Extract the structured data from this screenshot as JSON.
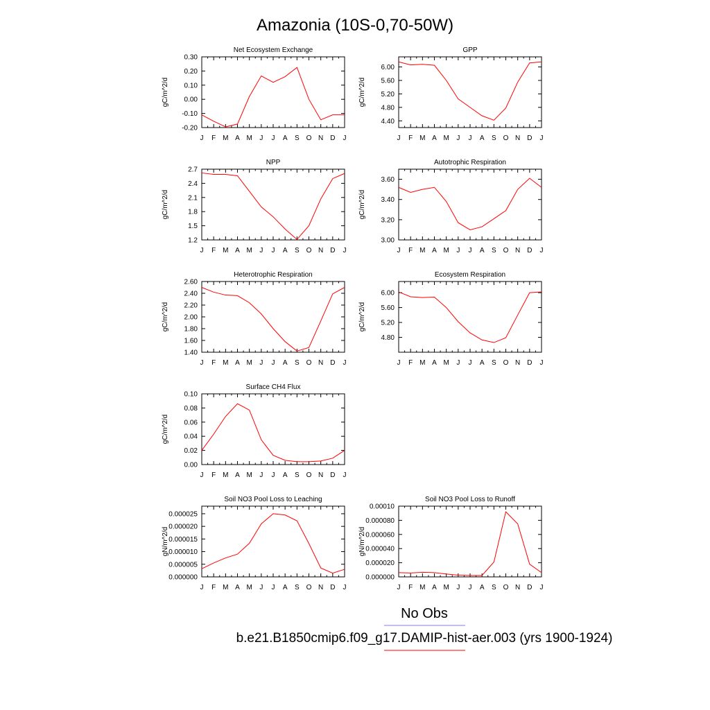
{
  "figure": {
    "title": "Amazonia (10S-0,70-50W)",
    "months": [
      "J",
      "F",
      "M",
      "A",
      "M",
      "J",
      "J",
      "A",
      "S",
      "O",
      "N",
      "D",
      "J"
    ]
  },
  "legend": {
    "obs_label": "No Obs",
    "model_label": "b.e21.B1850cmip6.f09_g17.DAMIP-hist-aer.003 (yrs 1900-1924)",
    "obs_color": "#7b7bff",
    "model_color": "#ff0000"
  },
  "chart_data": [
    {
      "type": "line",
      "title": "Net Ecosystem Exchange",
      "ylabel": "gC/m^2/d",
      "ylim": [
        -0.2,
        0.3
      ],
      "yticks": [
        "-0.20",
        "-0.10",
        "0.00",
        "0.10",
        "0.20",
        "0.30"
      ],
      "x": [
        "J",
        "F",
        "M",
        "A",
        "M",
        "J",
        "J",
        "A",
        "S",
        "O",
        "N",
        "D",
        "J"
      ],
      "series": [
        {
          "color": "#ff0000",
          "values": [
            -0.11,
            -0.155,
            -0.195,
            -0.175,
            0.02,
            0.165,
            0.12,
            0.16,
            0.225,
            0.0,
            -0.145,
            -0.11,
            -0.11
          ]
        }
      ]
    },
    {
      "type": "line",
      "title": "GPP",
      "ylabel": "gC/m^2/d",
      "ylim": [
        4.2,
        6.3
      ],
      "yticks": [
        "4.40",
        "4.80",
        "5.20",
        "5.60",
        "6.00"
      ],
      "x": [
        "J",
        "F",
        "M",
        "A",
        "M",
        "J",
        "J",
        "A",
        "S",
        "O",
        "N",
        "D",
        "J"
      ],
      "series": [
        {
          "color": "#ff0000",
          "values": [
            6.15,
            6.06,
            6.08,
            6.05,
            5.6,
            5.05,
            4.8,
            4.55,
            4.42,
            4.78,
            5.55,
            6.12,
            6.15
          ]
        }
      ]
    },
    {
      "type": "line",
      "title": "NPP",
      "ylabel": "gC/m^2/d",
      "ylim": [
        1.2,
        2.7
      ],
      "yticks": [
        "1.2",
        "1.5",
        "1.8",
        "2.1",
        "2.4",
        "2.7"
      ],
      "x": [
        "J",
        "F",
        "M",
        "A",
        "M",
        "J",
        "J",
        "A",
        "S",
        "O",
        "N",
        "D",
        "J"
      ],
      "series": [
        {
          "color": "#ff0000",
          "values": [
            2.62,
            2.59,
            2.59,
            2.56,
            2.23,
            1.9,
            1.69,
            1.43,
            1.21,
            1.5,
            2.07,
            2.5,
            2.61
          ]
        }
      ]
    },
    {
      "type": "line",
      "title": "Autotrophic Respiration",
      "ylabel": "gC/m^2/d",
      "ylim": [
        3.0,
        3.7
      ],
      "yticks": [
        "3.00",
        "3.20",
        "3.40",
        "3.60"
      ],
      "x": [
        "J",
        "F",
        "M",
        "A",
        "M",
        "J",
        "J",
        "A",
        "S",
        "O",
        "N",
        "D",
        "J"
      ],
      "series": [
        {
          "color": "#ff0000",
          "values": [
            3.52,
            3.47,
            3.5,
            3.52,
            3.38,
            3.17,
            3.1,
            3.13,
            3.21,
            3.29,
            3.5,
            3.61,
            3.52
          ]
        }
      ]
    },
    {
      "type": "line",
      "title": "Heterotrophic Respiration",
      "ylabel": "gC/m^2/d",
      "ylim": [
        1.4,
        2.6
      ],
      "yticks": [
        "1.40",
        "1.60",
        "1.80",
        "2.00",
        "2.20",
        "2.40",
        "2.60"
      ],
      "x": [
        "J",
        "F",
        "M",
        "A",
        "M",
        "J",
        "J",
        "A",
        "S",
        "O",
        "N",
        "D",
        "J"
      ],
      "series": [
        {
          "color": "#ff0000",
          "values": [
            2.5,
            2.42,
            2.37,
            2.36,
            2.24,
            2.05,
            1.8,
            1.58,
            1.42,
            1.48,
            1.93,
            2.39,
            2.5
          ]
        }
      ]
    },
    {
      "type": "line",
      "title": "Ecosystem Respiration",
      "ylabel": "gC/m^2/d",
      "ylim": [
        4.4,
        6.3
      ],
      "yticks": [
        "4.80",
        "5.20",
        "5.60",
        "6.00"
      ],
      "x": [
        "J",
        "F",
        "M",
        "A",
        "M",
        "J",
        "J",
        "A",
        "S",
        "O",
        "N",
        "D",
        "J"
      ],
      "series": [
        {
          "color": "#ff0000",
          "values": [
            6.02,
            5.89,
            5.87,
            5.88,
            5.6,
            5.22,
            4.92,
            4.73,
            4.66,
            4.79,
            5.4,
            6.0,
            6.02
          ]
        }
      ]
    },
    {
      "type": "line",
      "title": "Surface CH4 Flux",
      "ylabel": "gC/m^2/d",
      "ylim": [
        0.0,
        0.1
      ],
      "yticks": [
        "0.00",
        "0.02",
        "0.04",
        "0.06",
        "0.08",
        "0.10"
      ],
      "x": [
        "J",
        "F",
        "M",
        "A",
        "M",
        "J",
        "J",
        "A",
        "S",
        "O",
        "N",
        "D",
        "J"
      ],
      "series": [
        {
          "color": "#ff0000",
          "values": [
            0.02,
            0.043,
            0.068,
            0.086,
            0.077,
            0.035,
            0.013,
            0.006,
            0.004,
            0.004,
            0.005,
            0.009,
            0.02
          ]
        }
      ]
    },
    {
      "type": "line",
      "title": "Soil NO3 Pool Loss to Leaching",
      "ylabel": "gN/m^2/d",
      "ylim": [
        0.0,
        2.8e-05
      ],
      "yticks": [
        "0.000000",
        "0.000005",
        "0.000010",
        "0.000015",
        "0.000020",
        "0.000025"
      ],
      "x": [
        "J",
        "F",
        "M",
        "A",
        "M",
        "J",
        "J",
        "A",
        "S",
        "O",
        "N",
        "D",
        "J"
      ],
      "series": [
        {
          "color": "#ff0000",
          "values": [
            3.2e-06,
            5.5e-06,
            7.5e-06,
            9e-06,
            1.33e-05,
            2.1e-05,
            2.5e-05,
            2.45e-05,
            2.22e-05,
            1.32e-05,
            3.5e-06,
            1.5e-06,
            3e-06
          ]
        }
      ]
    },
    {
      "type": "line",
      "title": "Soil NO3 Pool Loss to Runoff",
      "ylabel": "gN/m^2/d",
      "ylim": [
        0.0,
        0.0001
      ],
      "yticks": [
        "0.000000",
        "0.000020",
        "0.000040",
        "0.000060",
        "0.000080",
        "0.00010"
      ],
      "x": [
        "J",
        "F",
        "M",
        "A",
        "M",
        "J",
        "J",
        "A",
        "S",
        "O",
        "N",
        "D",
        "J"
      ],
      "series": [
        {
          "color": "#ff0000",
          "values": [
            6e-06,
            5.5e-06,
            6.5e-06,
            6e-06,
            4e-06,
            2.5e-06,
            2e-06,
            2e-06,
            2.1e-05,
            9.2e-05,
            7.5e-05,
            1.8e-05,
            6e-06
          ]
        }
      ]
    }
  ]
}
